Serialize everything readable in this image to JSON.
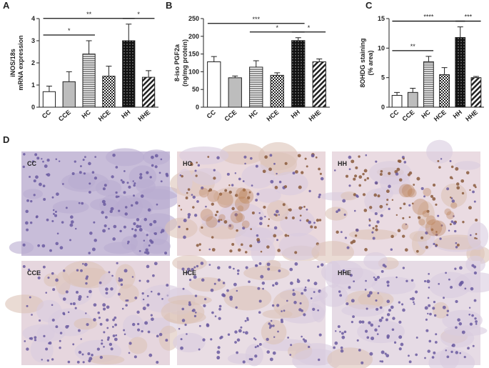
{
  "chart_data": [
    {
      "type": "bar",
      "panel": "A",
      "ylabel": [
        "iNOS/18s",
        "mRNA expression"
      ],
      "categories": [
        "CC",
        "CCE",
        "HC",
        "HCE",
        "HH",
        "HHE"
      ],
      "values": [
        0.7,
        1.15,
        2.4,
        1.4,
        3.0,
        1.35
      ],
      "errors": [
        0.25,
        0.45,
        0.6,
        0.45,
        0.75,
        0.3
      ],
      "ylim": [
        0,
        4
      ],
      "yticks": [
        0,
        1,
        2,
        3,
        4
      ],
      "annotations": [
        {
          "label": "*",
          "from": 0,
          "to": 2
        },
        {
          "label": "*",
          "from": 4,
          "to": 5
        },
        {
          "label": "**",
          "from": 0,
          "to": 4
        }
      ]
    },
    {
      "type": "bar",
      "panel": "B",
      "ylabel": [
        "8-iso PGF2a",
        "(ng/mg protein)"
      ],
      "categories": [
        "CC",
        "CCE",
        "HC",
        "HCE",
        "HH",
        "HHE"
      ],
      "values": [
        128,
        83,
        113,
        90,
        188,
        128
      ],
      "errors": [
        15,
        5,
        18,
        7,
        8,
        8
      ],
      "ylim": [
        0,
        250
      ],
      "yticks": [
        0,
        50,
        100,
        150,
        200,
        250
      ],
      "annotations": [
        {
          "label": "*",
          "from": 2,
          "to": 4
        },
        {
          "label": "*",
          "from": 4,
          "to": 5
        },
        {
          "label": "***",
          "from": 0,
          "to": 4
        }
      ]
    },
    {
      "type": "bar",
      "panel": "C",
      "ylabel": [
        "8OHDG staining",
        "(% area)"
      ],
      "categories": [
        "CC",
        "CCE",
        "HC",
        "HCE",
        "HH",
        "HHE"
      ],
      "values": [
        2.0,
        2.5,
        7.7,
        5.5,
        11.8,
        5.0
      ],
      "errors": [
        0.5,
        0.7,
        0.9,
        1.2,
        1.8,
        0.2
      ],
      "ylim": [
        0,
        15
      ],
      "yticks": [
        0,
        5,
        10,
        15
      ],
      "annotations": [
        {
          "label": "**",
          "from": 0,
          "to": 2
        },
        {
          "label": "***",
          "from": 4,
          "to": 5
        },
        {
          "label": "****",
          "from": 0,
          "to": 4
        }
      ]
    }
  ],
  "micrographs": {
    "panel": "D",
    "labels": [
      "CC",
      "HC",
      "HH",
      "CCE",
      "HCE",
      "HHE"
    ]
  }
}
